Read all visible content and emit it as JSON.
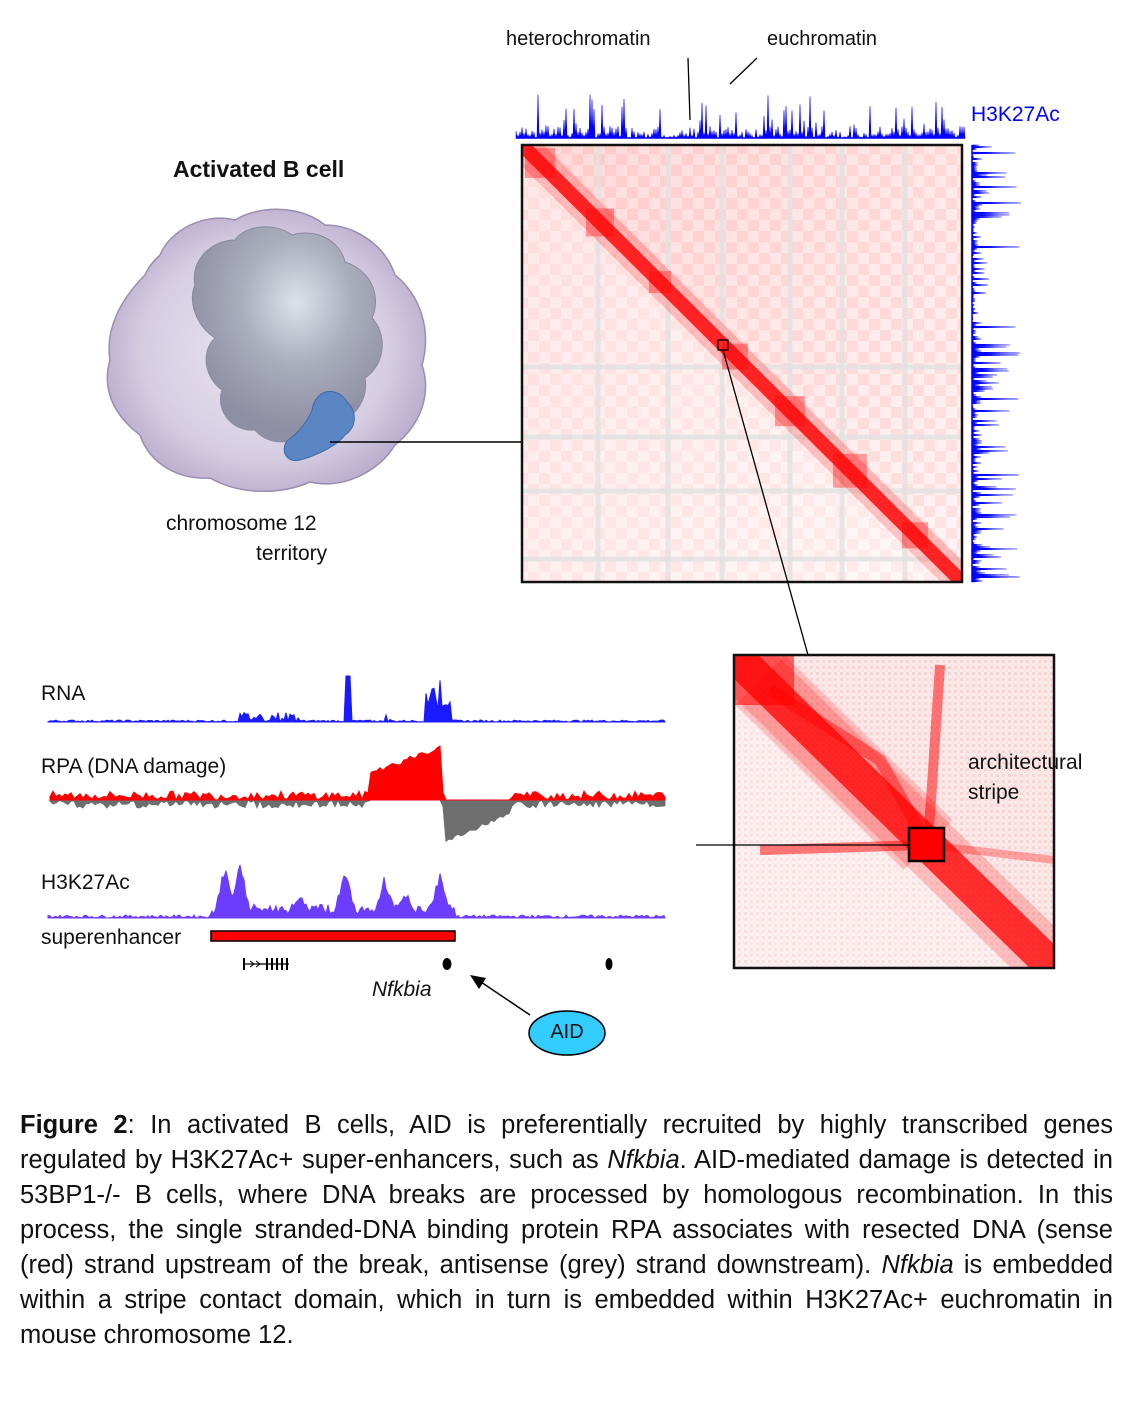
{
  "figure": {
    "cell_title": "Activated B cell",
    "territory_label_line1": "chromosome 12",
    "territory_label_line2": "territory",
    "heterochromatin_label": "heterochromatin",
    "euchromatin_label": "euchromatin",
    "h3k27ac_side_label": "H3K27Ac",
    "stripe_label_line1": "architectural",
    "stripe_label_line2": "stripe",
    "tracks": [
      {
        "name": "RNA",
        "color": "#1a1aff"
      },
      {
        "name": "RPA (DNA damage)",
        "color": "#ff0000"
      },
      {
        "name": "H3K27Ac",
        "color": "#6a3dff"
      }
    ],
    "superenhancer_label": "superenhancer",
    "gene_label": "Nfkbia",
    "aid_label": "AID",
    "colors": {
      "hic_red": "#ff0000",
      "h3k27ac_blue": "#0000ff",
      "rpa_antisense_grey": "#6e6e6e",
      "aid_fill": "#33ccff",
      "territory_blue": "#5b86c4"
    }
  },
  "caption": {
    "label": "Figure 2",
    "part1": ": In activated B cells, AID is preferentially recruited by highly transcribed genes regulated by H3K27Ac+ super-enhancers, such as ",
    "italic1": "Nfkbia",
    "part2": ".  AID-mediated damage is detected in 53BP1-/- B cells, where DNA breaks are processed by homologous recombination. In this process, the single stranded-DNA binding protein RPA associates with resected DNA (sense (red) strand upstream of the break, antisense (grey) strand downstream). ",
    "italic2": "Nfkbia",
    "part3": " is embedded within a stripe contact domain, which in turn is embedded within H3K27Ac+ euchromatin in mouse chromosome 12."
  }
}
